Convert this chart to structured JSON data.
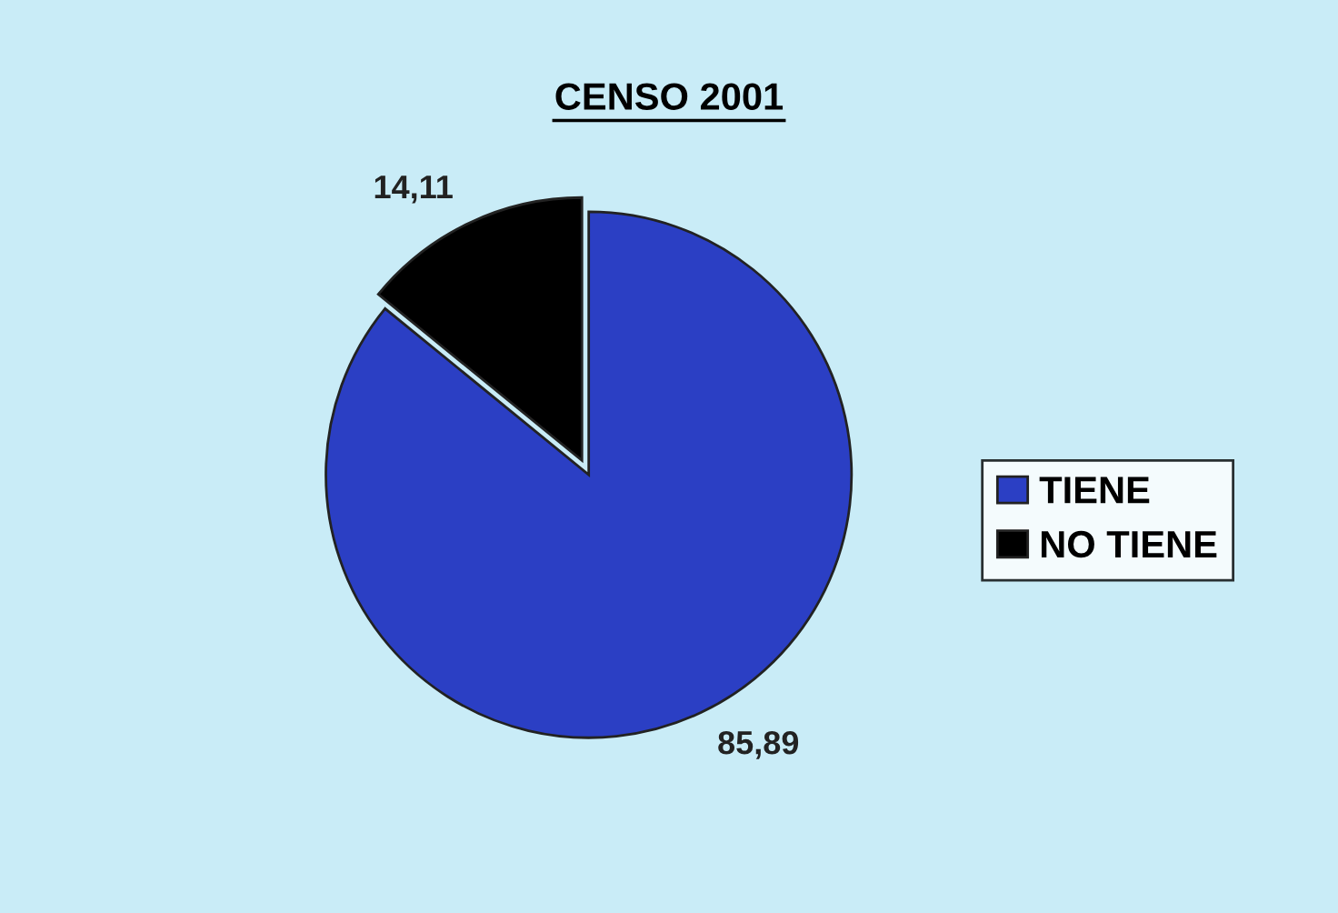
{
  "chart_data": {
    "type": "pie",
    "title": "CENSO 2001",
    "categories": [
      "TIENE",
      "NO TIENE"
    ],
    "values": [
      85.89,
      14.11
    ],
    "colors": [
      "#2b3fc4",
      "#000000"
    ],
    "value_labels": [
      "85,89",
      "14,11"
    ],
    "legend": "right"
  }
}
